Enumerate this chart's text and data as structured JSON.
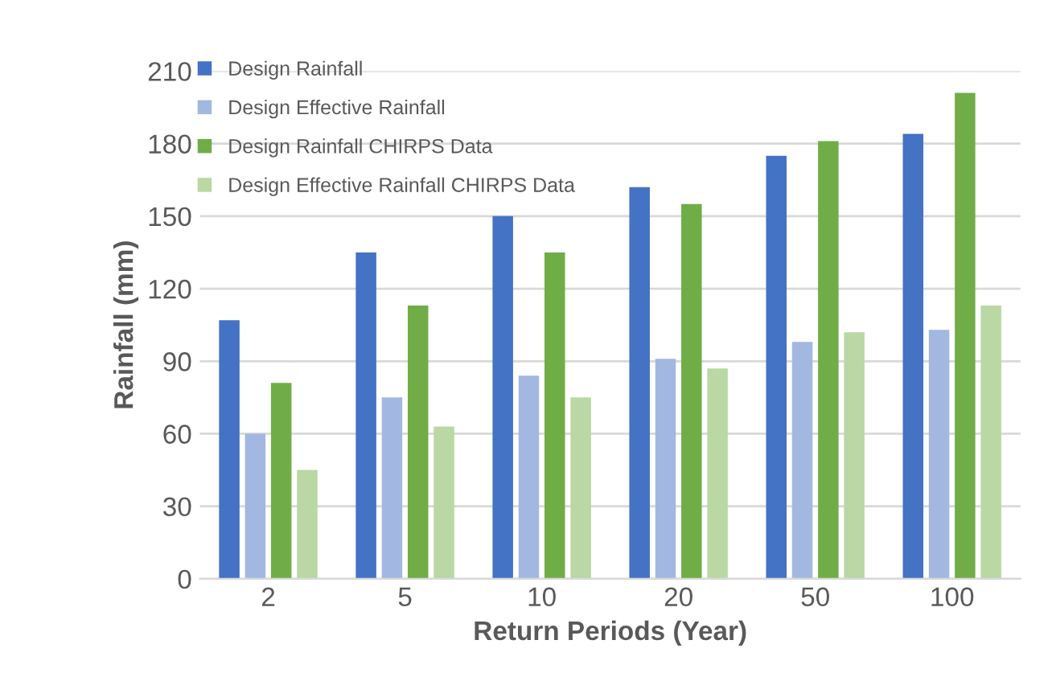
{
  "chart_data": {
    "type": "bar",
    "xlabel": "Return Periods (Year)",
    "ylabel": "Rainfall (mm)",
    "categories": [
      "2",
      "5",
      "10",
      "20",
      "50",
      "100"
    ],
    "series": [
      {
        "name": "Design Rainfall",
        "color": "#4472c4",
        "values": [
          107,
          135,
          150,
          162,
          175,
          184
        ]
      },
      {
        "name": "Design Effective Rainfall",
        "color": "#a2b8e0",
        "values": [
          60,
          75,
          84,
          91,
          98,
          103
        ]
      },
      {
        "name": "Design Rainfall CHIRPS Data",
        "color": "#70ad47",
        "values": [
          81,
          113,
          135,
          155,
          181,
          201
        ]
      },
      {
        "name": "Design Effective Rainfall CHIRPS Data",
        "color": "#b9d8a4",
        "values": [
          45,
          63,
          75,
          87,
          102,
          113
        ]
      }
    ],
    "ylim": [
      0,
      210
    ],
    "yticks": [
      0,
      30,
      60,
      90,
      120,
      150,
      180,
      210
    ],
    "grid": "y",
    "legend": "top left"
  }
}
